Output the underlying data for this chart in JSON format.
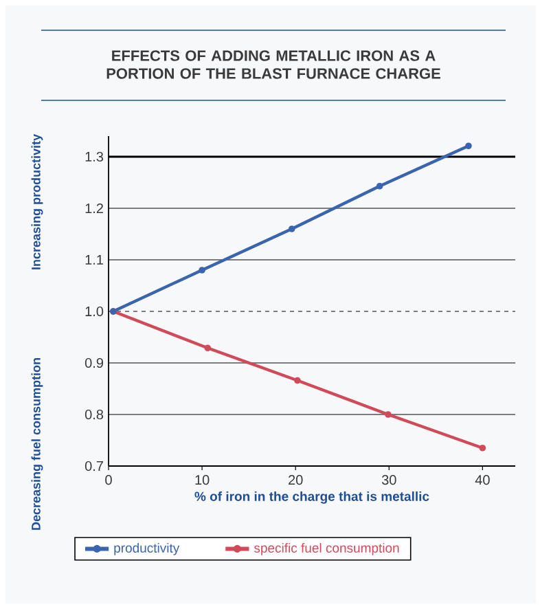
{
  "chart_data": {
    "type": "line",
    "title": "EFFECTS OF ADDING METALLIC IRON AS A PORTION OF THE BLAST FURNACE CHARGE",
    "xlabel": "% of iron in the charge that is metallic",
    "ylabel": "Increasing productivity",
    "annotations": [
      "Decreasing fuel consumption"
    ],
    "series": [
      {
        "name": "productivity",
        "color": "#3a64ae",
        "x": [
          0.5,
          10,
          19.6,
          29,
          38.5
        ],
        "values": [
          1.0,
          1.08,
          1.16,
          1.243,
          1.321
        ]
      },
      {
        "name": "specific fuel consumption",
        "color": "#d04a5a",
        "x": [
          0.5,
          10.6,
          20.2,
          29.9,
          40
        ],
        "values": [
          1.0,
          0.929,
          0.866,
          0.8,
          0.735
        ]
      }
    ],
    "xlim": [
      0,
      43.5
    ],
    "ylim": [
      0.7,
      1.34
    ],
    "xticks": [
      0,
      10,
      20,
      30,
      40
    ],
    "yticks": [
      {
        "value": 0.7,
        "label": "0.7"
      },
      {
        "value": 0.8,
        "label": "0.8"
      },
      {
        "value": 0.9,
        "label": "0.9"
      },
      {
        "value": 1.0,
        "label": "1.0"
      },
      {
        "value": 1.1,
        "label": "1.1"
      },
      {
        "value": 1.2,
        "label": "1.2"
      },
      {
        "value": 1.3,
        "label": "1.3"
      }
    ],
    "grid": "y",
    "legend": "bottom",
    "marker": "circle",
    "line_style": "solid",
    "ref_lines": [
      {
        "axis": "y",
        "value": 1.3,
        "color": "#000000",
        "line_style": "solid"
      },
      {
        "axis": "y",
        "value": 1.0,
        "color": "#000000",
        "line_style": "dashed"
      }
    ]
  }
}
